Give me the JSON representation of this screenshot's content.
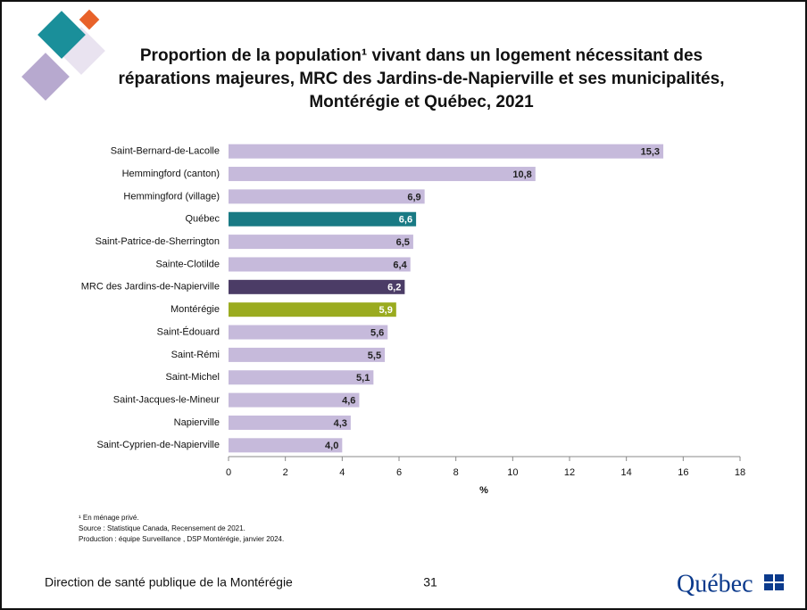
{
  "chart_data": {
    "type": "hbar",
    "title": "Proportion de la population¹ vivant dans un logement nécessitant des réparations majeures, MRC des Jardins-de-Napierville et ses municipalités, Montérégie et Québec, 2021",
    "categories": [
      "Saint-Bernard-de-Lacolle",
      "Hemmingford (canton)",
      "Hemmingford (village)",
      "Québec",
      "Saint-Patrice-de-Sherrington",
      "Sainte-Clotilde",
      "MRC des Jardins-de-Napierville",
      "Montérégie",
      "Saint-Édouard",
      "Saint-Rémi",
      "Saint-Michel",
      "Saint-Jacques-le-Mineur",
      "Napierville",
      "Saint-Cyprien-de-Napierville"
    ],
    "values": [
      15.3,
      10.8,
      6.9,
      6.6,
      6.5,
      6.4,
      6.2,
      5.9,
      5.6,
      5.5,
      5.1,
      4.6,
      4.3,
      4.0
    ],
    "value_labels": [
      "15,3",
      "10,8",
      "6,9",
      "6,6",
      "6,5",
      "6,4",
      "6,2",
      "5,9",
      "5,6",
      "5,5",
      "5,1",
      "4,6",
      "4,3",
      "4,0"
    ],
    "colors": [
      "#c6badb",
      "#c6badb",
      "#c6badb",
      "#197a84",
      "#c6badb",
      "#c6badb",
      "#4b3c66",
      "#9aab1f",
      "#c6badb",
      "#c6badb",
      "#c6badb",
      "#c6badb",
      "#c6badb",
      "#c6badb"
    ],
    "xlabel": "%",
    "xlim": [
      0,
      18
    ],
    "xticks": [
      0,
      2,
      4,
      6,
      8,
      10,
      12,
      14,
      16,
      18
    ]
  },
  "footnotes": [
    "¹ En ménage privé.",
    "Source : Statistique Canada, Recensement de 2021.",
    "Production : équipe Surveillance , DSP Montérégie, janvier 2024."
  ],
  "footer": {
    "organization": "Direction de santé publique de la Montérégie",
    "page_number": 31,
    "logo": "Québec"
  }
}
